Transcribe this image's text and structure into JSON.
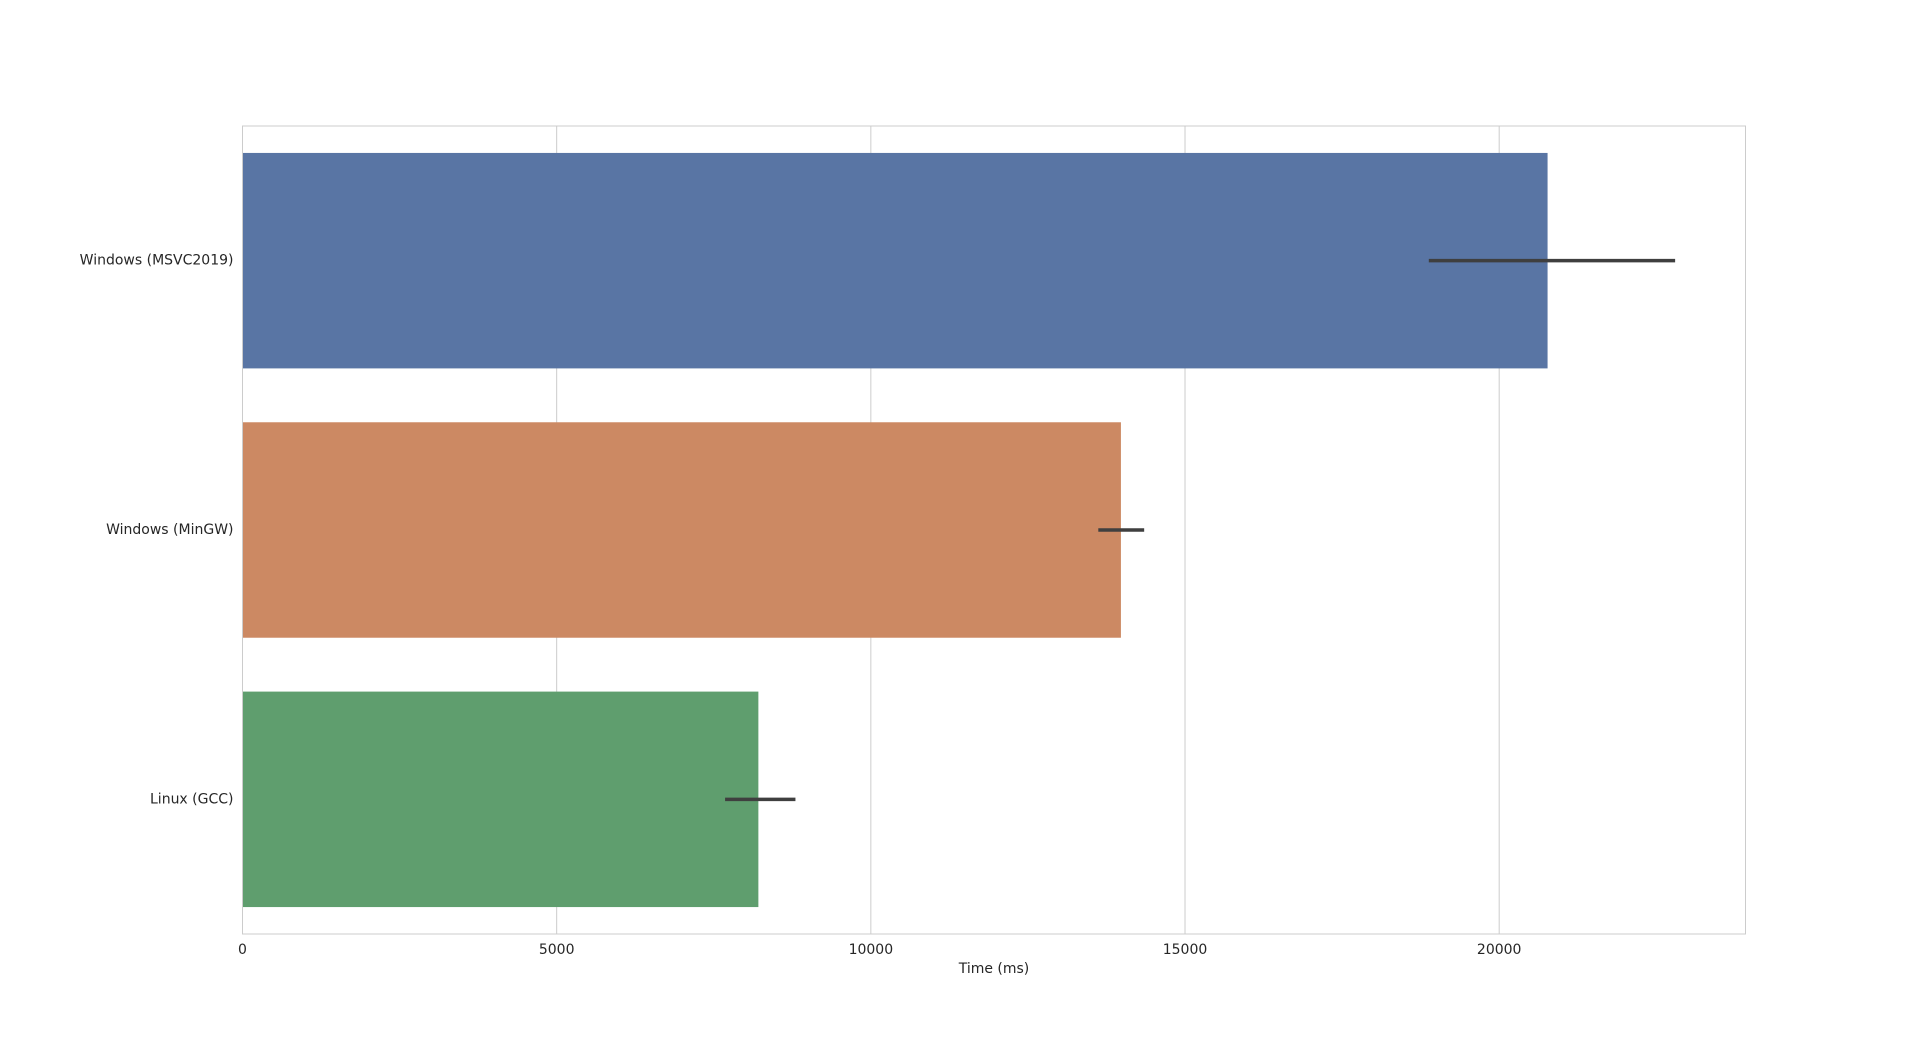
{
  "chart_data": {
    "type": "bar",
    "orientation": "horizontal",
    "xlabel": "Time (ms)",
    "categories": [
      "Windows (MSVC2019)",
      "Windows (MinGW)",
      "Linux (GCC)"
    ],
    "series": [
      {
        "name": null,
        "colors": [
          "#5975a4",
          "#cc8963",
          "#5f9e6e"
        ],
        "values": [
          20770,
          13980,
          8210
        ],
        "ci": [
          [
            18880,
            22800
          ],
          [
            13620,
            14350
          ],
          [
            7680,
            8800
          ]
        ]
      }
    ],
    "xlim": [
      0,
      23920
    ],
    "xticks": [
      0,
      5000,
      10000,
      15000,
      20000
    ],
    "grid": true
  }
}
